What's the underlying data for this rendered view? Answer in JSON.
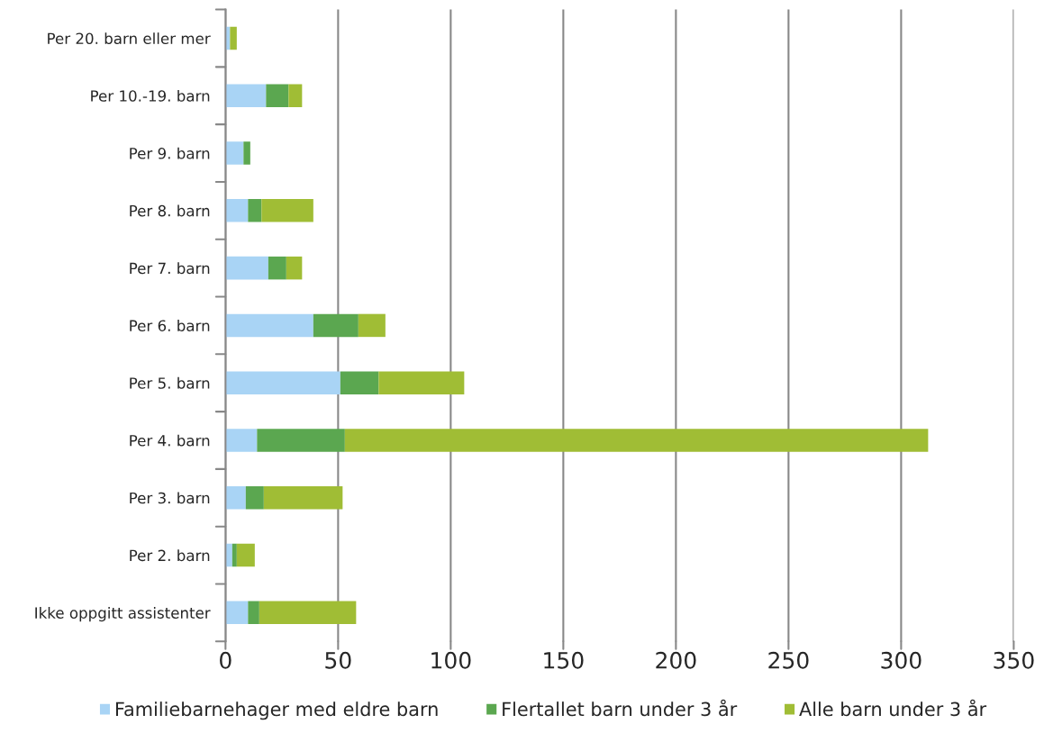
{
  "chart_data": {
    "type": "bar",
    "orientation": "horizontal",
    "stacked": true,
    "categories": [
      "Per 20. barn eller mer",
      "Per 10.-19. barn",
      "Per 9. barn",
      "Per 8. barn",
      "Per 7. barn",
      "Per 6. barn",
      "Per 5. barn",
      "Per 4. barn",
      "Per 3. barn",
      "Per 2. barn",
      "Ikke oppgitt assistenter"
    ],
    "series": [
      {
        "name": "Familiebarnehager med eldre barn",
        "color": "#a9d4f5",
        "values": [
          2,
          18,
          8,
          10,
          19,
          39,
          51,
          14,
          9,
          3,
          10
        ]
      },
      {
        "name": "Flertallet barn under 3 år",
        "color": "#5ba750",
        "values": [
          0,
          10,
          3,
          6,
          8,
          20,
          17,
          39,
          8,
          2,
          5
        ]
      },
      {
        "name": "Alle barn under 3 år",
        "color": "#a0bd35",
        "values": [
          3,
          6,
          0,
          23,
          7,
          12,
          38,
          259,
          35,
          8,
          43
        ]
      }
    ],
    "xlim": [
      0,
      350
    ],
    "xticks": [
      0,
      50,
      100,
      150,
      200,
      250,
      300,
      350
    ],
    "grid": "x",
    "legend": "bottom"
  }
}
